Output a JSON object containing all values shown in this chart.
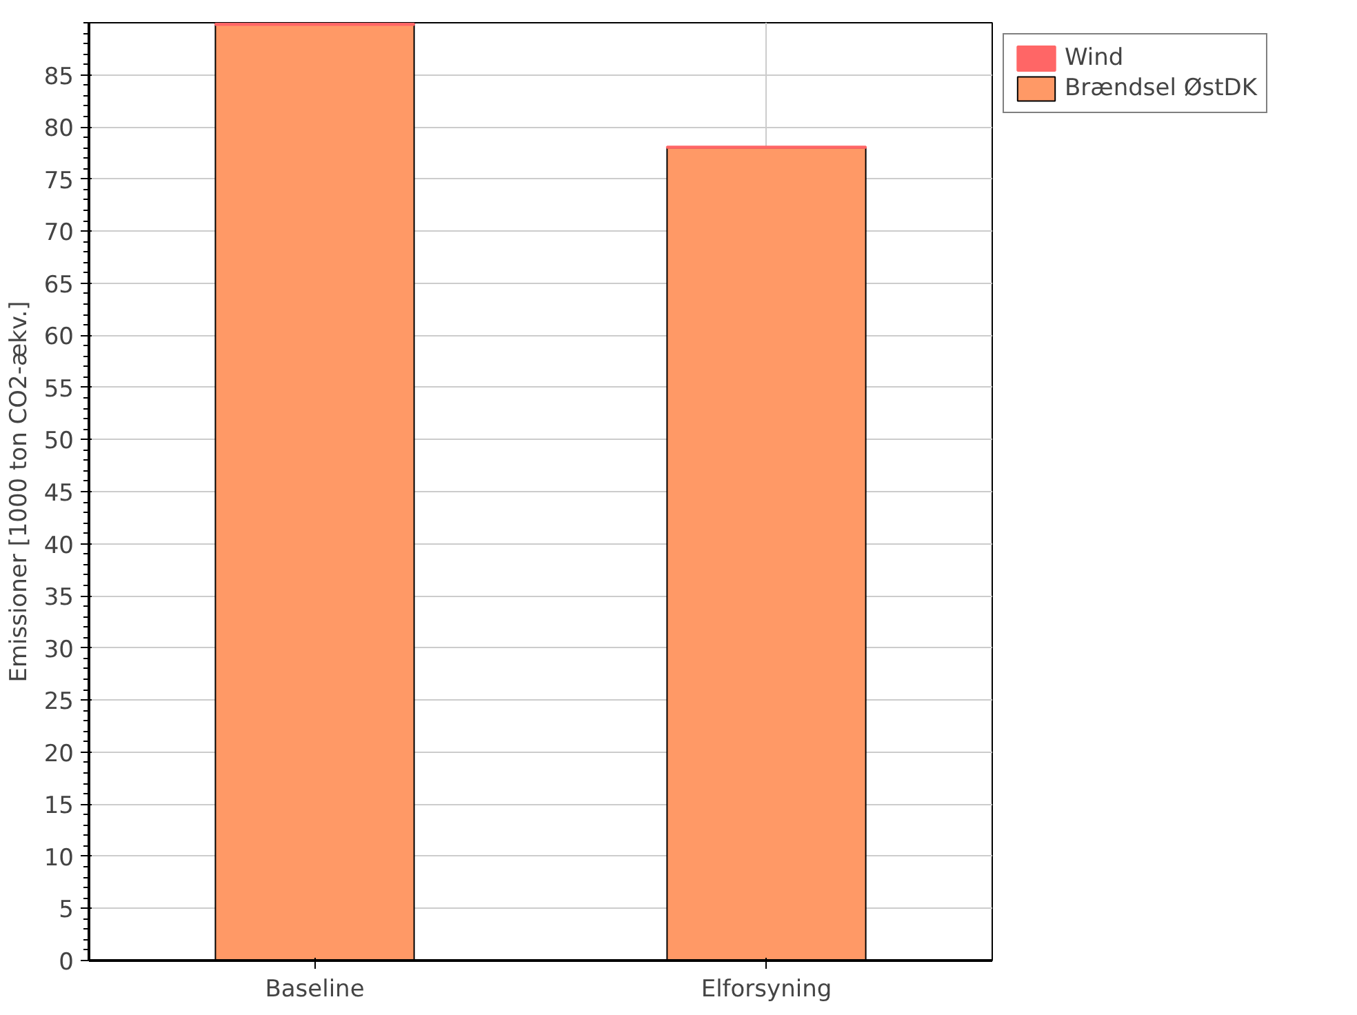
{
  "chart_data": {
    "type": "bar",
    "stacked": true,
    "categories": [
      "Baseline",
      "Elforsyning"
    ],
    "ylabel": "Emissioner [1000 ton CO2-ækv.]",
    "series": [
      {
        "name": "Brændsel ØstDK",
        "color": "#ff9966",
        "values": [
          89.8,
          78
        ]
      },
      {
        "name": "Wind",
        "color": "#ff6666",
        "values": [
          0.1,
          0.1
        ]
      }
    ],
    "ylim": [
      0,
      90
    ],
    "yticks": [
      0,
      5,
      10,
      15,
      20,
      25,
      30,
      35,
      40,
      45,
      50,
      55,
      60,
      65,
      70,
      75,
      80,
      85
    ],
    "grid": true,
    "legend": "top right"
  }
}
